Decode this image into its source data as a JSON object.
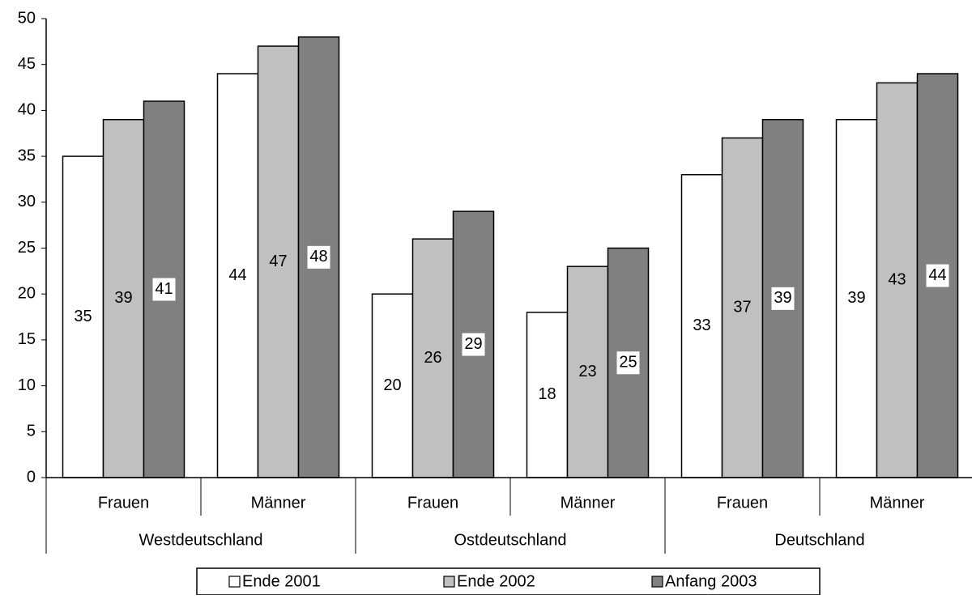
{
  "chart_data": {
    "type": "bar",
    "title": "",
    "xlabel": "",
    "ylabel": "",
    "ylim": [
      0,
      50
    ],
    "yticks": [
      "0",
      "5",
      "10",
      "15",
      "20",
      "25",
      "30",
      "35",
      "40",
      "45",
      "50"
    ],
    "grid": false,
    "legend_position": "bottom",
    "groups": [
      "Westdeutschland",
      "Ostdeutschland",
      "Deutschland"
    ],
    "categories": [
      "Frauen",
      "Männer",
      "Frauen",
      "Männer",
      "Frauen",
      "Männer"
    ],
    "series": [
      {
        "name": "Ende 2001",
        "color": "#ffffff",
        "values": [
          35,
          44,
          20,
          18,
          33,
          39
        ]
      },
      {
        "name": "Ende 2002",
        "color": "#c0c0c0",
        "values": [
          39,
          47,
          26,
          23,
          37,
          43
        ]
      },
      {
        "name": "Anfang 2003",
        "color": "#808080",
        "values": [
          41,
          48,
          29,
          25,
          39,
          44
        ]
      }
    ]
  }
}
